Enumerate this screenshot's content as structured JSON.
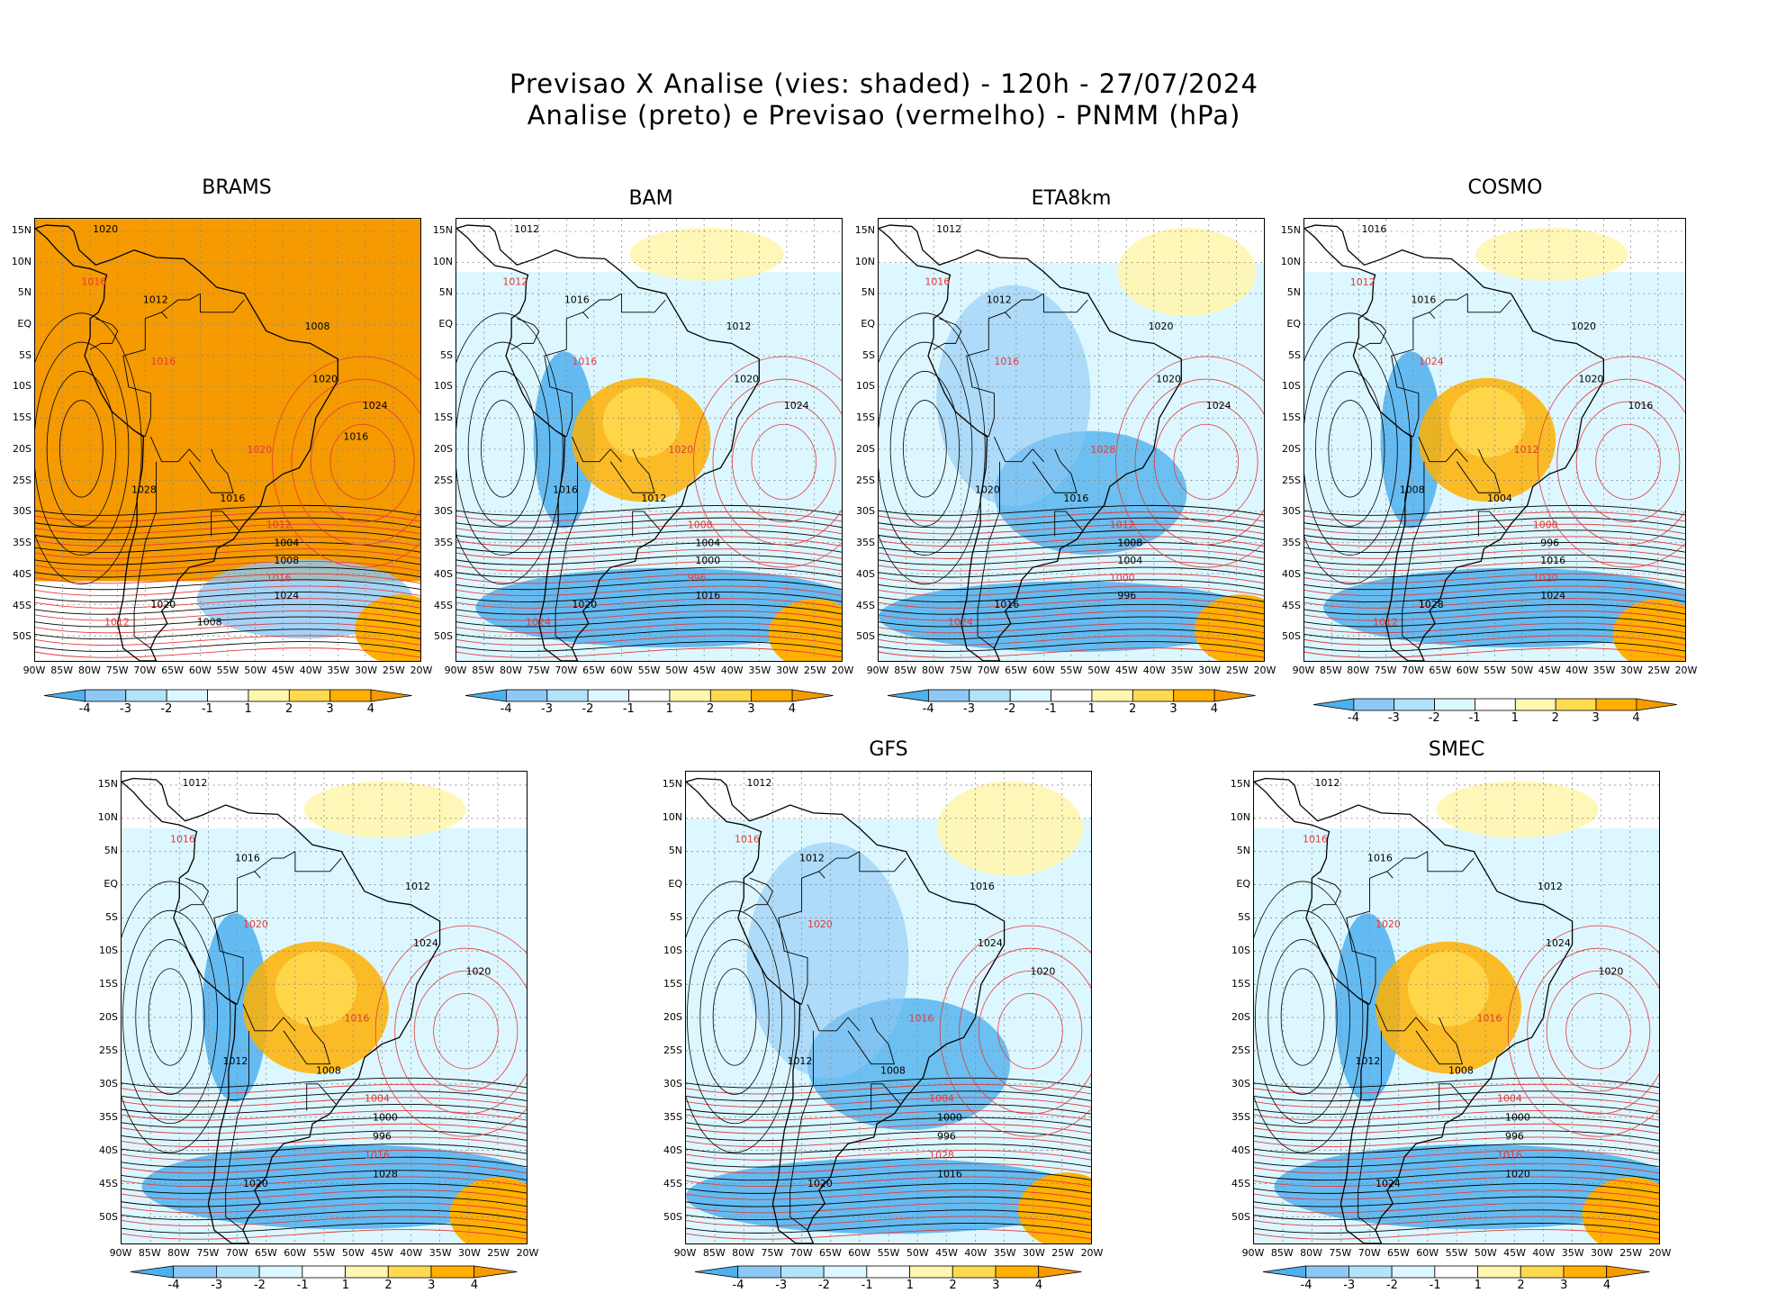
{
  "header": {
    "line1": "Previsao X Analise (vies: shaded) - 120h - 27/07/2024",
    "line2": "Analise (preto) e Previsao (vermelho) - PNMM (hPa)"
  },
  "axes": {
    "lat_labels": [
      "15N",
      "10N",
      "5N",
      "EQ",
      "5S",
      "10S",
      "15S",
      "20S",
      "25S",
      "30S",
      "35S",
      "40S",
      "45S",
      "50S"
    ],
    "lon_labels": [
      "90W",
      "85W",
      "80W",
      "75W",
      "70W",
      "65W",
      "60W",
      "55W",
      "50W",
      "45W",
      "40W",
      "35W",
      "30W",
      "25W",
      "20W"
    ]
  },
  "colorbar": {
    "labels": [
      "-4",
      "-3",
      "-2",
      "-1",
      "1",
      "2",
      "3",
      "4"
    ],
    "colors": [
      "#4fb0ee",
      "#8ec8f5",
      "#b3e3fb",
      "#dcf7ff",
      "#ffffff",
      "#fff6b0",
      "#ffd94f",
      "#ffb000",
      "#f59a00"
    ]
  },
  "panels": [
    {
      "title": "BRAMS",
      "bias": "warm",
      "contour_labels": [
        "1020",
        "1016",
        "1012",
        "1008",
        "1016",
        "1020",
        "1024",
        "1020",
        "1028",
        "1016",
        "1012",
        "1004",
        "1008",
        "1016",
        "1024",
        "1020",
        "1012",
        "1008",
        "1016"
      ]
    },
    {
      "title": "BAM",
      "bias": "mixed",
      "contour_labels": [
        "1012",
        "1012",
        "1016",
        "1012",
        "1016",
        "1020",
        "1024",
        "1020",
        "1016",
        "1012",
        "1008",
        "1004",
        "1000",
        "996",
        "1016",
        "1020",
        "1024"
      ]
    },
    {
      "title": "ETA8km",
      "bias": "cold",
      "contour_labels": [
        "1012",
        "1016",
        "1012",
        "1020",
        "1016",
        "1020",
        "1024",
        "1028",
        "1020",
        "1016",
        "1012",
        "1008",
        "1004",
        "1000",
        "996",
        "1016",
        "1024"
      ]
    },
    {
      "title": "COSMO",
      "bias": "mixed",
      "contour_labels": [
        "1016",
        "1012",
        "1016",
        "1020",
        "1024",
        "1020",
        "1016",
        "1012",
        "1008",
        "1004",
        "1000",
        "996",
        "1016",
        "1020",
        "1024",
        "1028",
        "1012"
      ]
    },
    {
      "title": "",
      "bias": "mixed",
      "contour_labels": [
        "1012",
        "1016",
        "1016",
        "1012",
        "1020",
        "1024",
        "1020",
        "1016",
        "1012",
        "1008",
        "1004",
        "1000",
        "996",
        "1016",
        "1028",
        "1020"
      ]
    },
    {
      "title": "GFS",
      "bias": "cold",
      "contour_labels": [
        "1012",
        "1016",
        "1012",
        "1016",
        "1020",
        "1024",
        "1020",
        "1016",
        "1012",
        "1008",
        "1004",
        "1000",
        "996",
        "1028",
        "1016",
        "1020"
      ]
    },
    {
      "title": "SMEC",
      "bias": "mixed",
      "contour_labels": [
        "1012",
        "1016",
        "1016",
        "1012",
        "1020",
        "1024",
        "1020",
        "1016",
        "1012",
        "1008",
        "1004",
        "1000",
        "996",
        "1016",
        "1020",
        "1024"
      ]
    }
  ]
}
